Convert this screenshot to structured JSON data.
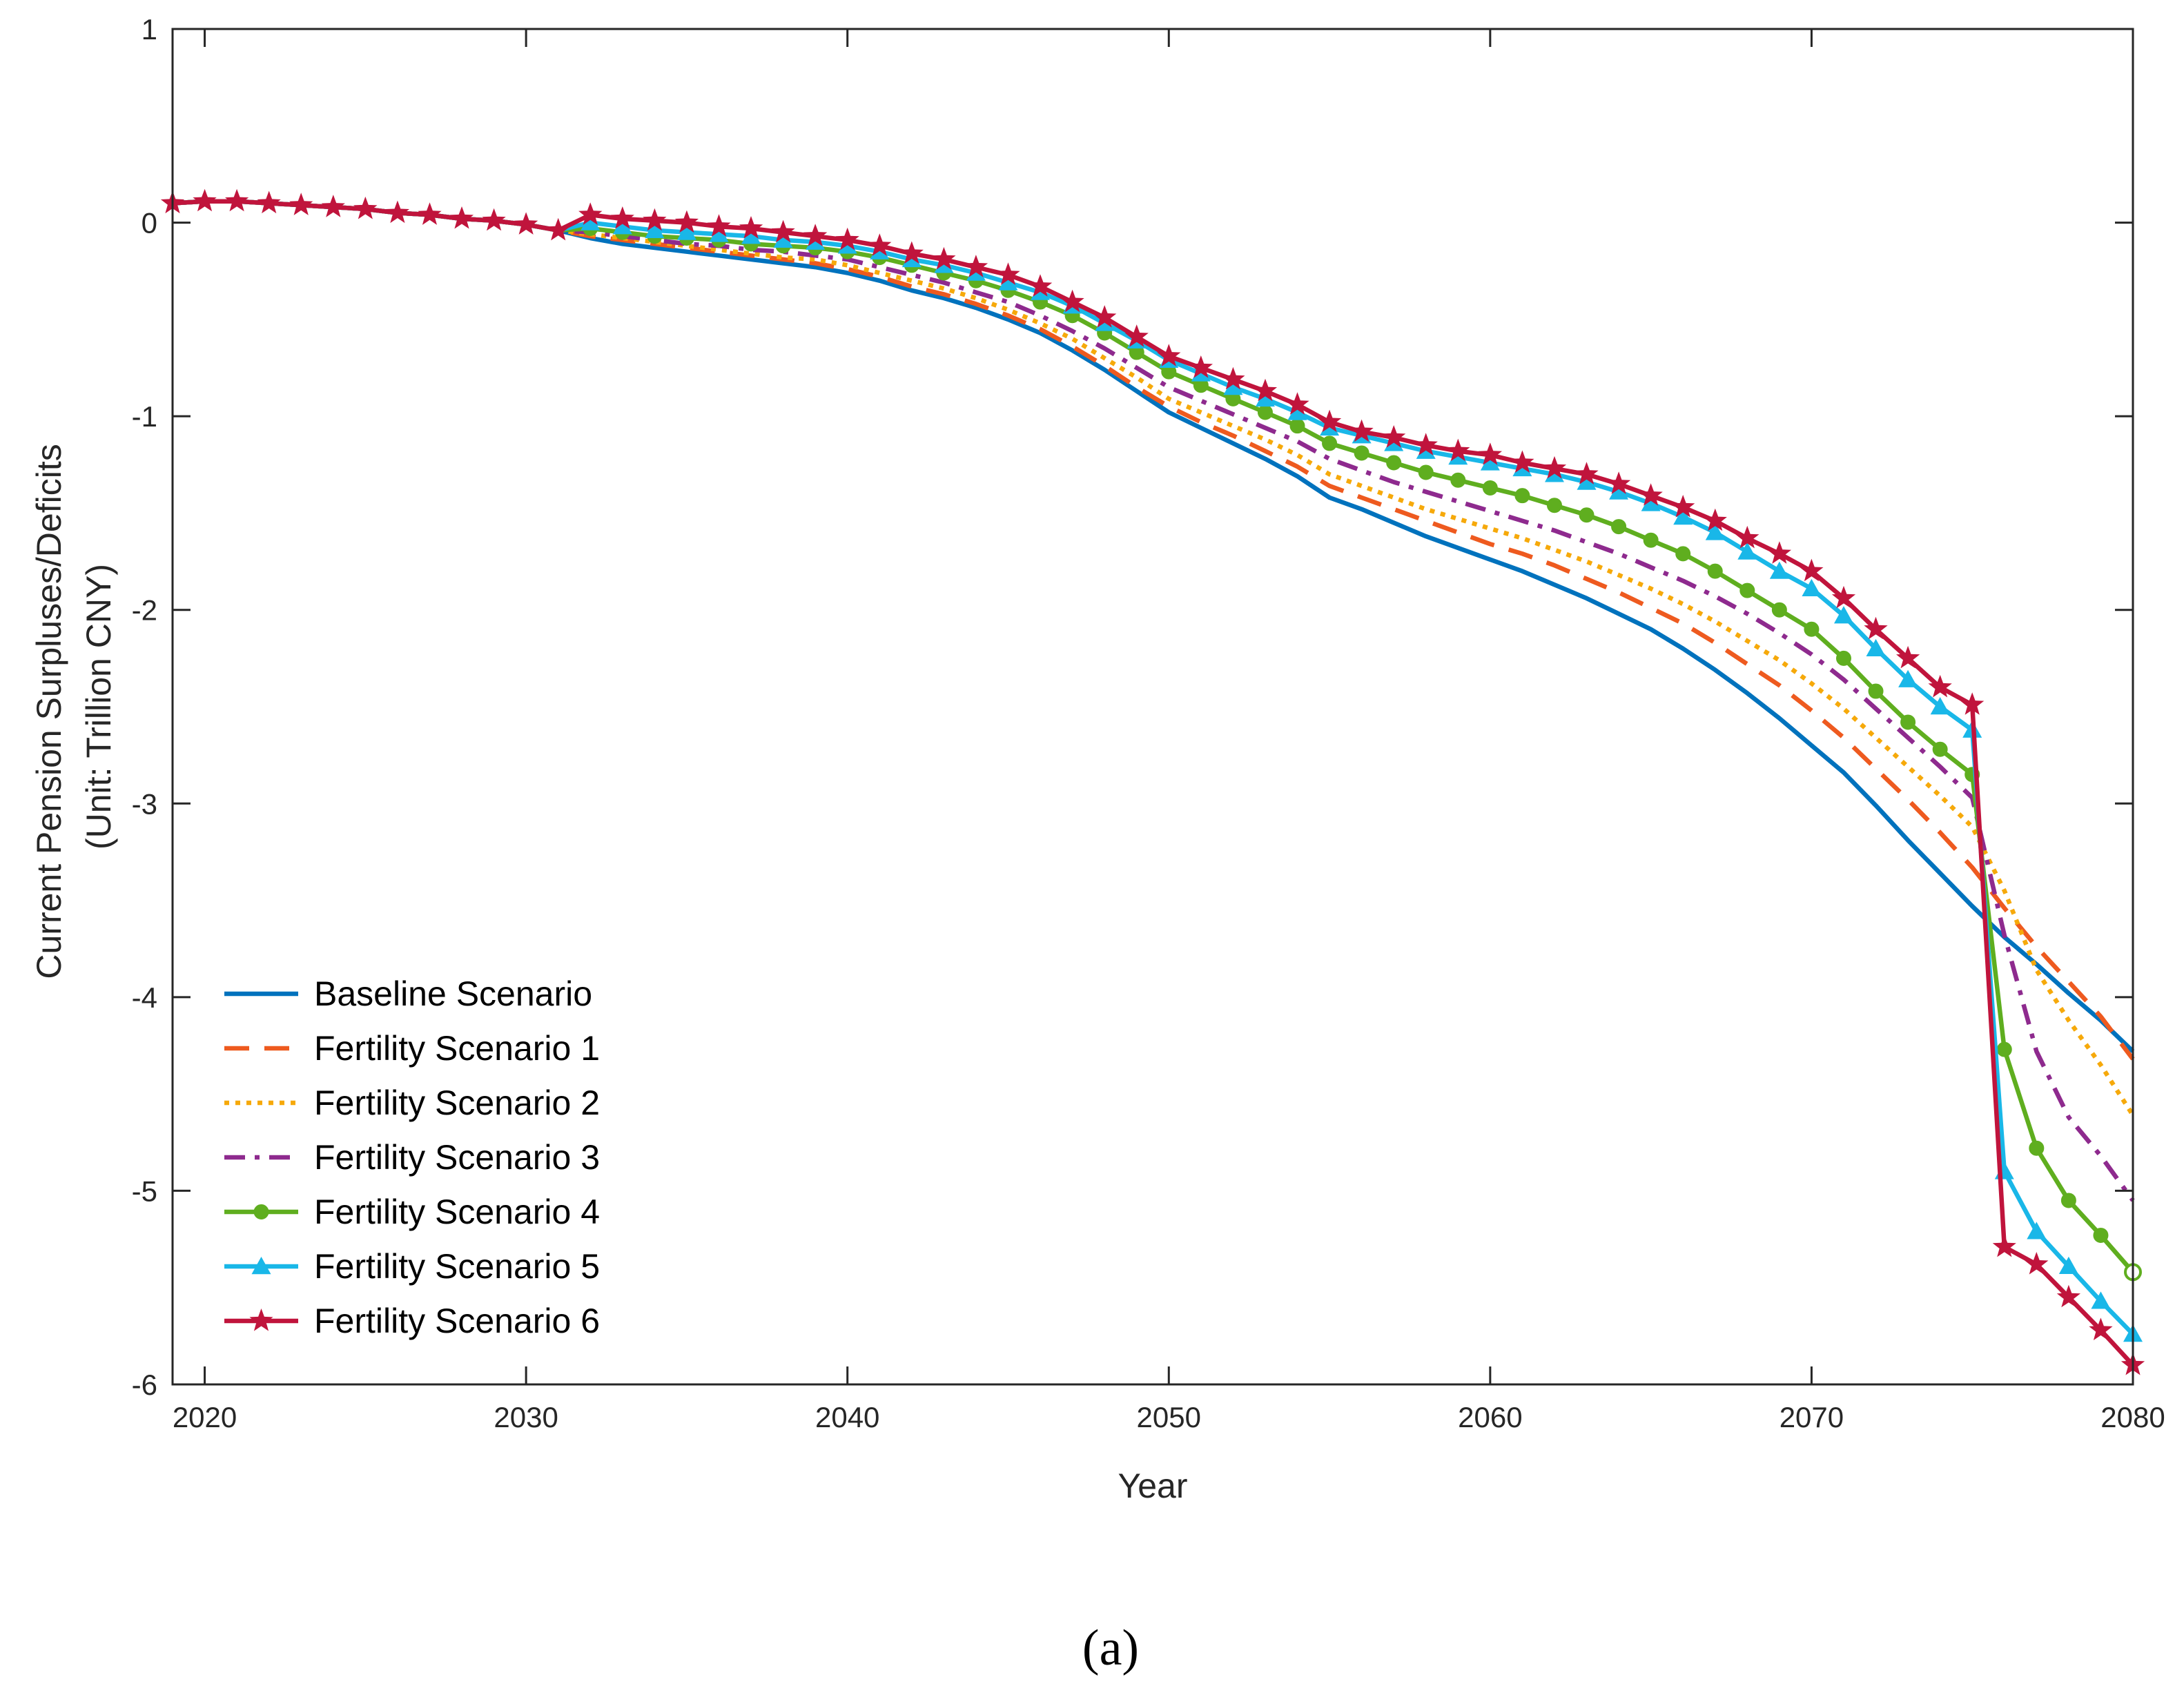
{
  "chart_data": {
    "type": "line",
    "xlabel": "Year",
    "ylabel_lines": [
      "Current Pension Surpluses/Deficits",
      "(Unit: Trillion  CNY)"
    ],
    "xlim": [
      2019,
      2080
    ],
    "ylim": [
      -6,
      1
    ],
    "xticks": [
      2020,
      2030,
      2040,
      2050,
      2060,
      2070,
      2080
    ],
    "yticks": [
      1,
      0,
      -1,
      -2,
      -3,
      -4,
      -5,
      -6
    ],
    "grid": false,
    "legend_position": "bottom-left",
    "caption": "(a)",
    "x": [
      2019,
      2020,
      2021,
      2022,
      2023,
      2024,
      2025,
      2026,
      2027,
      2028,
      2029,
      2030,
      2031,
      2032,
      2033,
      2034,
      2035,
      2036,
      2037,
      2038,
      2039,
      2040,
      2041,
      2042,
      2043,
      2044,
      2045,
      2046,
      2047,
      2048,
      2049,
      2050,
      2051,
      2052,
      2053,
      2054,
      2055,
      2056,
      2057,
      2058,
      2059,
      2060,
      2061,
      2062,
      2063,
      2064,
      2065,
      2066,
      2067,
      2068,
      2069,
      2070,
      2071,
      2072,
      2073,
      2074,
      2075,
      2076,
      2077,
      2078,
      2079,
      2080
    ],
    "series": [
      {
        "name": "Baseline Scenario",
        "color": "#0072BD",
        "style": "solid",
        "marker": "none",
        "values": [
          0.1,
          0.11,
          0.11,
          0.1,
          0.09,
          0.08,
          0.07,
          0.05,
          0.04,
          0.02,
          0.01,
          -0.01,
          -0.04,
          -0.08,
          -0.11,
          -0.13,
          -0.15,
          -0.17,
          -0.19,
          -0.21,
          -0.23,
          -0.26,
          -0.3,
          -0.35,
          -0.39,
          -0.44,
          -0.5,
          -0.57,
          -0.66,
          -0.76,
          -0.87,
          -0.98,
          -1.06,
          -1.14,
          -1.22,
          -1.31,
          -1.42,
          -1.48,
          -1.55,
          -1.62,
          -1.68,
          -1.74,
          -1.8,
          -1.87,
          -1.94,
          -2.02,
          -2.1,
          -2.2,
          -2.31,
          -2.43,
          -2.56,
          -2.7,
          -2.84,
          -3.01,
          -3.19,
          -3.36,
          -3.53,
          -3.69,
          -3.83,
          -3.98,
          -4.12,
          -4.28
        ]
      },
      {
        "name": "Fertility Scenario 1",
        "color": "#EE5A1F",
        "style": "dashed",
        "marker": "none",
        "values": [
          0.1,
          0.11,
          0.11,
          0.1,
          0.09,
          0.08,
          0.07,
          0.05,
          0.04,
          0.02,
          0.01,
          -0.01,
          -0.04,
          -0.07,
          -0.09,
          -0.11,
          -0.13,
          -0.15,
          -0.17,
          -0.19,
          -0.21,
          -0.24,
          -0.28,
          -0.33,
          -0.37,
          -0.42,
          -0.48,
          -0.55,
          -0.64,
          -0.74,
          -0.85,
          -0.95,
          -1.03,
          -1.1,
          -1.18,
          -1.26,
          -1.36,
          -1.42,
          -1.48,
          -1.54,
          -1.6,
          -1.66,
          -1.71,
          -1.77,
          -1.84,
          -1.91,
          -1.99,
          -2.07,
          -2.17,
          -2.28,
          -2.39,
          -2.52,
          -2.66,
          -2.82,
          -2.98,
          -3.15,
          -3.33,
          -3.54,
          -3.74,
          -3.92,
          -4.1,
          -4.32
        ]
      },
      {
        "name": "Fertility Scenario 2",
        "color": "#F6A90A",
        "style": "dotted",
        "marker": "none",
        "values": [
          0.1,
          0.11,
          0.11,
          0.1,
          0.09,
          0.08,
          0.07,
          0.05,
          0.04,
          0.02,
          0.01,
          -0.01,
          -0.04,
          -0.06,
          -0.08,
          -0.1,
          -0.12,
          -0.14,
          -0.16,
          -0.18,
          -0.19,
          -0.22,
          -0.26,
          -0.3,
          -0.34,
          -0.39,
          -0.45,
          -0.52,
          -0.6,
          -0.7,
          -0.8,
          -0.91,
          -0.98,
          -1.05,
          -1.12,
          -1.2,
          -1.3,
          -1.36,
          -1.42,
          -1.48,
          -1.53,
          -1.58,
          -1.63,
          -1.69,
          -1.75,
          -1.82,
          -1.89,
          -1.97,
          -2.06,
          -2.16,
          -2.26,
          -2.38,
          -2.51,
          -2.66,
          -2.81,
          -2.96,
          -3.12,
          -3.45,
          -3.86,
          -4.12,
          -4.35,
          -4.61
        ]
      },
      {
        "name": "Fertility Scenario 3",
        "color": "#8E2A8E",
        "style": "dashdot",
        "marker": "none",
        "values": [
          0.1,
          0.11,
          0.11,
          0.1,
          0.09,
          0.08,
          0.07,
          0.05,
          0.04,
          0.02,
          0.01,
          -0.01,
          -0.04,
          -0.05,
          -0.07,
          -0.09,
          -0.11,
          -0.12,
          -0.14,
          -0.15,
          -0.17,
          -0.19,
          -0.23,
          -0.27,
          -0.31,
          -0.36,
          -0.41,
          -0.48,
          -0.56,
          -0.65,
          -0.75,
          -0.85,
          -0.92,
          -0.99,
          -1.06,
          -1.13,
          -1.22,
          -1.28,
          -1.34,
          -1.39,
          -1.44,
          -1.49,
          -1.54,
          -1.59,
          -1.65,
          -1.71,
          -1.78,
          -1.85,
          -1.93,
          -2.02,
          -2.12,
          -2.23,
          -2.36,
          -2.51,
          -2.66,
          -2.81,
          -2.97,
          -3.68,
          -4.28,
          -4.62,
          -4.82,
          -5.05
        ]
      },
      {
        "name": "Fertility Scenario 4",
        "color": "#5FAE1F",
        "style": "solid",
        "marker": "dot",
        "values": [
          0.1,
          0.11,
          0.11,
          0.1,
          0.09,
          0.08,
          0.07,
          0.05,
          0.04,
          0.02,
          0.01,
          -0.01,
          -0.04,
          -0.03,
          -0.05,
          -0.07,
          -0.08,
          -0.09,
          -0.11,
          -0.12,
          -0.13,
          -0.15,
          -0.18,
          -0.22,
          -0.26,
          -0.3,
          -0.35,
          -0.41,
          -0.48,
          -0.57,
          -0.67,
          -0.77,
          -0.84,
          -0.91,
          -0.98,
          -1.05,
          -1.14,
          -1.19,
          -1.24,
          -1.29,
          -1.33,
          -1.37,
          -1.41,
          -1.46,
          -1.51,
          -1.57,
          -1.64,
          -1.71,
          -1.8,
          -1.9,
          -2.0,
          -2.1,
          -2.25,
          -2.42,
          -2.58,
          -2.72,
          -2.85,
          -4.27,
          -4.78,
          -5.05,
          -5.23,
          -5.42
        ]
      },
      {
        "name": "Fertility Scenario 5",
        "color": "#19B7E8",
        "style": "solid",
        "marker": "triangle",
        "values": [
          0.1,
          0.11,
          0.11,
          0.1,
          0.09,
          0.08,
          0.07,
          0.05,
          0.04,
          0.02,
          0.01,
          -0.01,
          -0.04,
          0.0,
          -0.02,
          -0.04,
          -0.05,
          -0.06,
          -0.07,
          -0.09,
          -0.1,
          -0.12,
          -0.15,
          -0.19,
          -0.22,
          -0.26,
          -0.31,
          -0.36,
          -0.43,
          -0.52,
          -0.61,
          -0.71,
          -0.78,
          -0.85,
          -0.91,
          -0.98,
          -1.06,
          -1.1,
          -1.14,
          -1.18,
          -1.21,
          -1.24,
          -1.27,
          -1.3,
          -1.34,
          -1.39,
          -1.45,
          -1.52,
          -1.6,
          -1.7,
          -1.8,
          -1.89,
          -2.03,
          -2.2,
          -2.36,
          -2.5,
          -2.62,
          -4.9,
          -5.21,
          -5.39,
          -5.57,
          -5.74
        ]
      },
      {
        "name": "Fertility Scenario 6",
        "color": "#C0143C",
        "style": "solid",
        "marker": "star",
        "values": [
          0.1,
          0.11,
          0.11,
          0.1,
          0.09,
          0.08,
          0.07,
          0.05,
          0.04,
          0.02,
          0.01,
          -0.01,
          -0.04,
          0.04,
          0.02,
          0.01,
          0.0,
          -0.02,
          -0.03,
          -0.05,
          -0.07,
          -0.09,
          -0.12,
          -0.16,
          -0.19,
          -0.23,
          -0.27,
          -0.33,
          -0.41,
          -0.49,
          -0.59,
          -0.69,
          -0.75,
          -0.81,
          -0.87,
          -0.94,
          -1.03,
          -1.08,
          -1.11,
          -1.15,
          -1.18,
          -1.2,
          -1.24,
          -1.27,
          -1.3,
          -1.35,
          -1.41,
          -1.47,
          -1.54,
          -1.63,
          -1.71,
          -1.8,
          -1.94,
          -2.1,
          -2.25,
          -2.4,
          -2.49,
          -5.29,
          -5.38,
          -5.55,
          -5.72,
          -5.9
        ]
      }
    ]
  }
}
